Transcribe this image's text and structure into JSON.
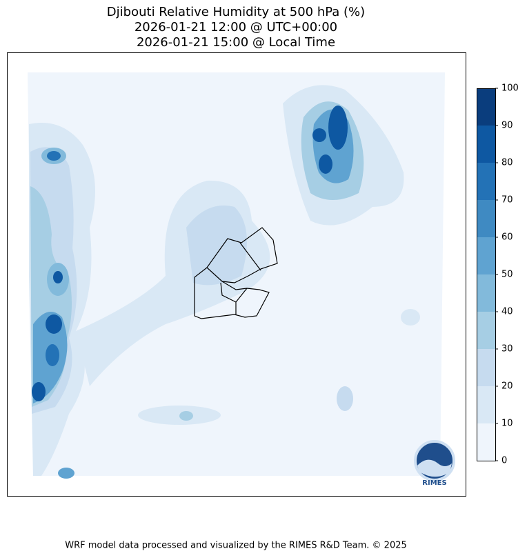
{
  "title": [
    "Djibouti Relative Humidity at 500 hPa (%)",
    "2026-01-21 12:00 @ UTC+00:00",
    "2026-01-21 15:00 @ Local Time"
  ],
  "colorbar": {
    "ticks": [
      0,
      10,
      20,
      30,
      40,
      50,
      60,
      70,
      80,
      90,
      100
    ],
    "colors": [
      "#eff5fc",
      "#d9e8f5",
      "#c6dbef",
      "#a6cee4",
      "#82badb",
      "#5fa3d1",
      "#3f8ac2",
      "#2372b6",
      "#0e58a2",
      "#0a3d7d"
    ]
  },
  "logo": "RIMES",
  "footer": "WRF model data processed and visualized by the RIMES R&D Team. © 2025"
}
